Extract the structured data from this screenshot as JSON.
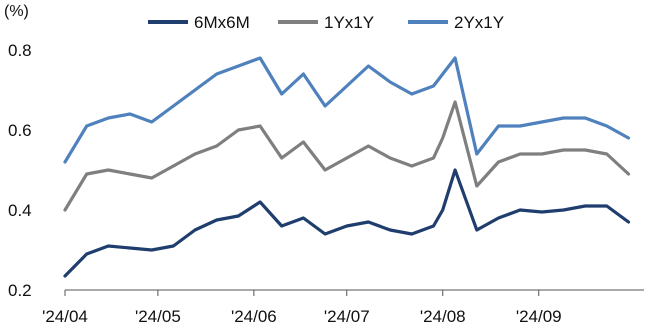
{
  "chart_data": {
    "type": "line",
    "title": "",
    "xlabel": "",
    "ylabel": "(%)",
    "ylim": [
      0.2,
      0.8
    ],
    "yticks": [
      "0.2",
      "0.4",
      "0.6",
      "0.8"
    ],
    "xticks": [
      "'24/04",
      "'24/05",
      "'24/06",
      "'24/07",
      "'24/08",
      "'24/09"
    ],
    "grid": false,
    "legend_position": "top",
    "x": [
      "2024-04-01",
      "2024-04-08",
      "2024-04-15",
      "2024-04-22",
      "2024-04-29",
      "2024-05-06",
      "2024-05-13",
      "2024-05-20",
      "2024-05-27",
      "2024-06-03",
      "2024-06-10",
      "2024-06-17",
      "2024-06-24",
      "2024-07-01",
      "2024-07-08",
      "2024-07-15",
      "2024-07-22",
      "2024-07-29",
      "2024-08-01",
      "2024-08-05",
      "2024-08-12",
      "2024-08-19",
      "2024-08-26",
      "2024-09-02",
      "2024-09-09",
      "2024-09-16",
      "2024-09-23",
      "2024-09-30"
    ],
    "series": [
      {
        "name": "6Mx6M",
        "color": "#1f3e6e",
        "values": [
          0.235,
          0.29,
          0.31,
          0.305,
          0.3,
          0.31,
          0.35,
          0.375,
          0.385,
          0.42,
          0.36,
          0.38,
          0.34,
          0.36,
          0.37,
          0.35,
          0.34,
          0.36,
          0.4,
          0.5,
          0.35,
          0.38,
          0.4,
          0.395,
          0.4,
          0.41,
          0.41,
          0.37
        ]
      },
      {
        "name": "1Yx1Y",
        "color": "#7f7f7f",
        "values": [
          0.4,
          0.49,
          0.5,
          0.49,
          0.48,
          0.51,
          0.54,
          0.56,
          0.6,
          0.61,
          0.53,
          0.57,
          0.5,
          0.53,
          0.56,
          0.53,
          0.51,
          0.53,
          0.58,
          0.67,
          0.46,
          0.52,
          0.54,
          0.54,
          0.55,
          0.55,
          0.54,
          0.49
        ]
      },
      {
        "name": "2Yx1Y",
        "color": "#4f81bd",
        "values": [
          0.52,
          0.61,
          0.63,
          0.64,
          0.62,
          0.66,
          0.7,
          0.74,
          0.76,
          0.78,
          0.69,
          0.74,
          0.66,
          0.71,
          0.76,
          0.72,
          0.69,
          0.71,
          0.74,
          0.78,
          0.54,
          0.61,
          0.61,
          0.62,
          0.63,
          0.63,
          0.61,
          0.58
        ]
      }
    ]
  }
}
